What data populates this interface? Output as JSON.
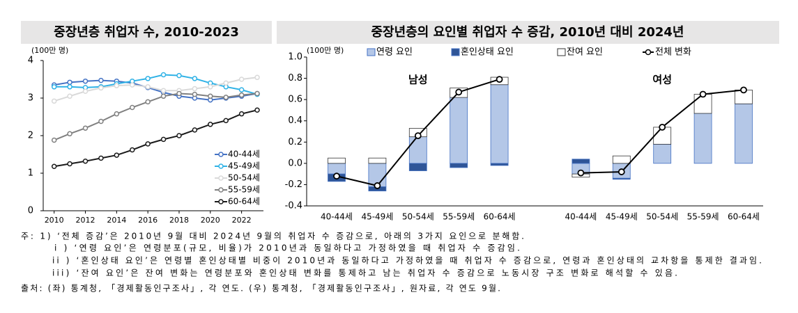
{
  "chart_data": [
    {
      "type": "line",
      "title": "중장년층 취업자 수, 2010-2023",
      "unit_label": "(100만 명)",
      "x": [
        2010,
        2011,
        2012,
        2013,
        2014,
        2015,
        2016,
        2017,
        2018,
        2019,
        2020,
        2021,
        2022,
        2023
      ],
      "xlim": [
        2009.3,
        2023.4
      ],
      "xticks": [
        2010,
        2012,
        2014,
        2016,
        2018,
        2020,
        2022
      ],
      "ylim": [
        0,
        4
      ],
      "yticks": [
        0,
        1,
        2,
        3,
        4
      ],
      "legend": "right",
      "series": [
        {
          "name": "40-44세",
          "color": "#4472c4",
          "values": [
            3.35,
            3.42,
            3.45,
            3.47,
            3.45,
            3.4,
            3.28,
            3.15,
            3.05,
            3.0,
            2.95,
            3.0,
            3.05,
            3.12
          ]
        },
        {
          "name": "45-49세",
          "color": "#2fb2e6",
          "values": [
            3.3,
            3.3,
            3.28,
            3.3,
            3.38,
            3.45,
            3.52,
            3.62,
            3.6,
            3.52,
            3.4,
            3.3,
            3.22,
            3.1
          ]
        },
        {
          "name": "50-54세",
          "color": "#d9d9d9",
          "values": [
            2.92,
            3.05,
            3.18,
            3.27,
            3.33,
            3.35,
            3.3,
            3.2,
            3.2,
            3.25,
            3.3,
            3.4,
            3.5,
            3.55
          ]
        },
        {
          "name": "55-59세",
          "color": "#808080",
          "values": [
            1.88,
            2.05,
            2.2,
            2.38,
            2.58,
            2.75,
            2.9,
            3.05,
            3.12,
            3.1,
            3.05,
            3.02,
            3.08,
            3.12
          ]
        },
        {
          "name": "60-64세",
          "color": "#1a1a1a",
          "values": [
            1.18,
            1.25,
            1.32,
            1.4,
            1.48,
            1.62,
            1.78,
            1.9,
            2.0,
            2.15,
            2.3,
            2.4,
            2.58,
            2.68
          ]
        }
      ]
    },
    {
      "type": "bar",
      "stacked": true,
      "title": "중장년층의 요인별 취업자 수 증감, 2010년 대비 2024년",
      "unit_label": "(100만 명)",
      "groups": [
        "남성",
        "여성"
      ],
      "categories": [
        "40-44세",
        "45-49세",
        "50-54세",
        "55-59세",
        "60-64세",
        "40-44세",
        "45-49세",
        "50-54세",
        "55-59세",
        "60-64세"
      ],
      "ylim": [
        -0.4,
        1.0
      ],
      "yticks": [
        -0.4,
        -0.2,
        {
          "value": 0,
          "label": "0.0"
        },
        0.2,
        0.4,
        0.6,
        0.8,
        {
          "value": 1,
          "label": "1.0"
        }
      ],
      "legend": "top",
      "series": [
        {
          "name": "연령 요인",
          "color": "#b4c7e7",
          "values": [
            -0.1,
            -0.22,
            0.25,
            0.62,
            0.74,
            -0.1,
            -0.14,
            0.18,
            0.47,
            0.56
          ]
        },
        {
          "name": "혼인상태 요인",
          "color": "#2f5597",
          "values": [
            -0.07,
            -0.04,
            -0.07,
            -0.04,
            -0.02,
            0.04,
            -0.01,
            0,
            0,
            0
          ]
        },
        {
          "name": "잔여 요인",
          "color": "#ffffff",
          "values": [
            0.05,
            0.05,
            0.08,
            0.09,
            0.07,
            -0.03,
            0.07,
            0.16,
            0.18,
            0.13
          ]
        },
        {
          "name": "전체 변화",
          "type": "line",
          "color": "#000000",
          "values": [
            -0.12,
            -0.21,
            0.26,
            0.67,
            0.79,
            -0.09,
            -0.08,
            0.34,
            0.65,
            0.69
          ]
        }
      ]
    }
  ],
  "notes": [
    "주: 1) ‘전체 증감’은 2010년 9월 대비 2024년 9월의 취업자 수 증감으로, 아래의 3가지 요인으로 분해함.",
    "i ) ‘연령 요인’은 연령분포(규모, 비율)가 2010년과 동일하다고 가정하였을 때 취업자 수 증감임.",
    "ii ) ‘혼인상태 요인’은 연령별 혼인상태별 비중이 2010년과 동일하다고 가정하였을 때 취업자 수 증감으로, 연령과 혼인상태의 교차항을 통제한 결과임.",
    "iii) ‘잔여 요인’은 잔여 변화는 연령분포와 혼인상태 변화를 통제하고 남는 취업자 수 증감으로 노동시장 구조 변화로 해석할 수 있음."
  ],
  "source": "출처: (좌) 통계청, 「경제활동인구조사」, 각 연도. (우) 통계청, 「경제활동인구조사」, 원자료, 각 연도 9월."
}
